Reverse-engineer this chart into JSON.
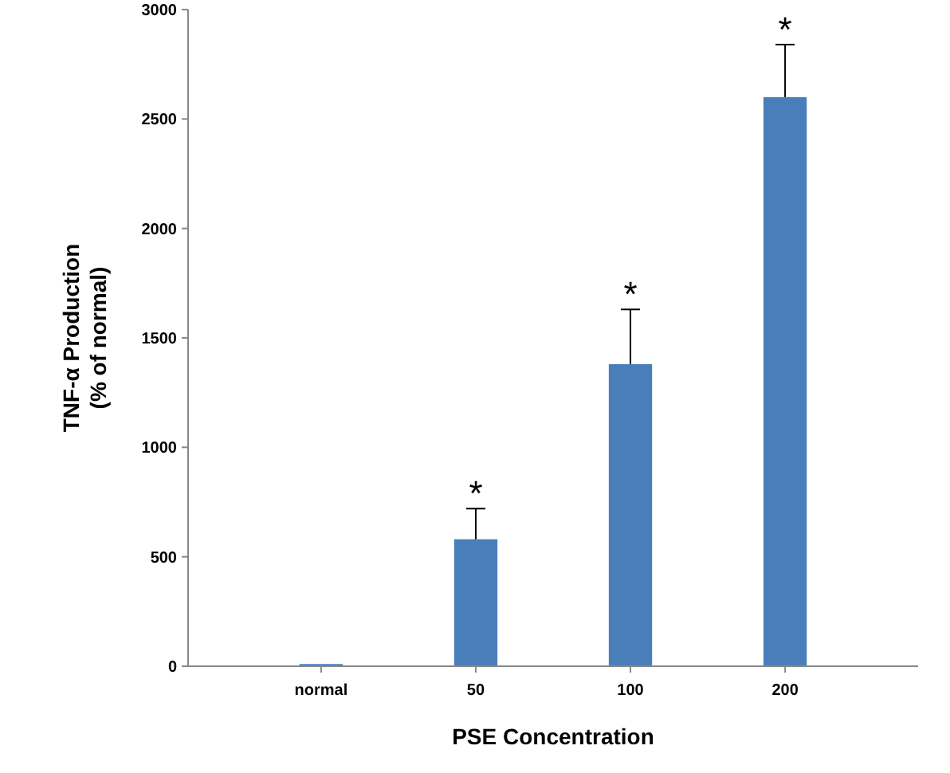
{
  "chart_data": {
    "type": "bar",
    "xlabel": "PSE Concentration",
    "ylabel": "TNF-α  Production\n(% of normal)",
    "categories": [
      "normal",
      "50",
      "100",
      "200"
    ],
    "values": [
      10,
      580,
      1380,
      2600
    ],
    "errors": [
      null,
      [
        580,
        720
      ],
      [
        1380,
        1630
      ],
      [
        2600,
        2840
      ]
    ],
    "color": "#4a7ebb",
    "ylim": [
      0,
      3000
    ],
    "yticks": [
      0,
      500,
      1000,
      1500,
      2000,
      2500,
      3000
    ],
    "annotations": [
      {
        "text": "*",
        "x": "50",
        "y": 720
      },
      {
        "text": "*",
        "x": "100",
        "y": 1630
      },
      {
        "text": "*",
        "x": "200",
        "y": 2840
      }
    ]
  }
}
